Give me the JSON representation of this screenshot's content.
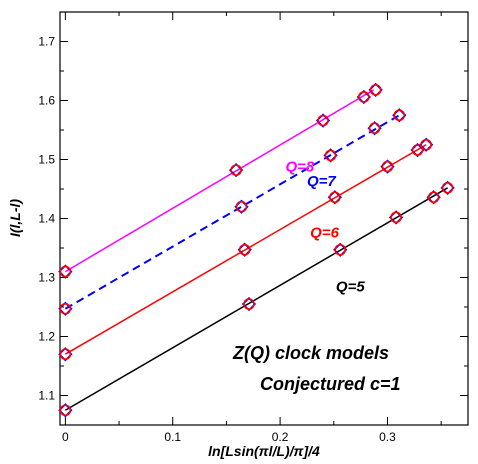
{
  "chart_data": {
    "type": "scatter",
    "title": "",
    "xlabel": "ln[Lsin(πl/L)/π]/4",
    "ylabel": "I(l,L-l)",
    "xlim": [
      -0.005,
      0.375
    ],
    "ylim": [
      1.05,
      1.75
    ],
    "xticks": [
      0,
      0.1,
      0.2,
      0.3
    ],
    "xtick_labels": [
      "0",
      "0.1",
      "0.2",
      "0.3"
    ],
    "yticks": [
      1.1,
      1.2,
      1.3,
      1.4,
      1.5,
      1.6,
      1.7
    ],
    "ytick_labels": [
      "1.1",
      "1.2",
      "1.3",
      "1.4",
      "1.5",
      "1.6",
      "1.7"
    ],
    "grid": false,
    "series": [
      {
        "name": "Q=8",
        "color": "#ff00ff",
        "line_style": "solid",
        "fit": [
          0.0,
          1.31,
          0.287,
          1.618
        ],
        "label_pos": [
          0.205,
          1.48
        ],
        "x": [
          0.0,
          0.159,
          0.24,
          0.278,
          0.289
        ],
        "y": [
          1.31,
          1.482,
          1.566,
          1.606,
          1.618
        ]
      },
      {
        "name": "Q=7",
        "color": "#0000ff",
        "line_style": "dashed",
        "fit": [
          0.0,
          1.247,
          0.311,
          1.575
        ],
        "label_pos": [
          0.225,
          1.455
        ],
        "x": [
          0.0,
          0.164,
          0.247,
          0.288,
          0.311
        ],
        "y": [
          1.247,
          1.42,
          1.507,
          1.553,
          1.575
        ]
      },
      {
        "name": "Q=6",
        "color": "#ff0000",
        "line_style": "solid",
        "fit": [
          0.0,
          1.17,
          0.336,
          1.525
        ],
        "label_pos": [
          0.228,
          1.368
        ],
        "x": [
          0.0,
          0.167,
          0.251,
          0.3,
          0.328,
          0.336
        ],
        "y": [
          1.17,
          1.347,
          1.436,
          1.488,
          1.516,
          1.525
        ]
      },
      {
        "name": "Q=5",
        "color": "#000000",
        "line_style": "solid",
        "fit": [
          0.0,
          1.075,
          0.356,
          1.452
        ],
        "label_pos": [
          0.252,
          1.276
        ],
        "x": [
          0.0,
          0.171,
          0.256,
          0.308,
          0.343,
          0.356
        ],
        "y": [
          1.075,
          1.255,
          1.347,
          1.402,
          1.436,
          1.452
        ]
      }
    ],
    "annotations": [
      {
        "text": "Z(Q) clock models",
        "color": "#ff0000"
      },
      {
        "text": "Conjectured c=1",
        "color": "#0000ff"
      }
    ],
    "marker_colors": {
      "circle": "#ff0000",
      "diamond": "#0000ff"
    }
  }
}
